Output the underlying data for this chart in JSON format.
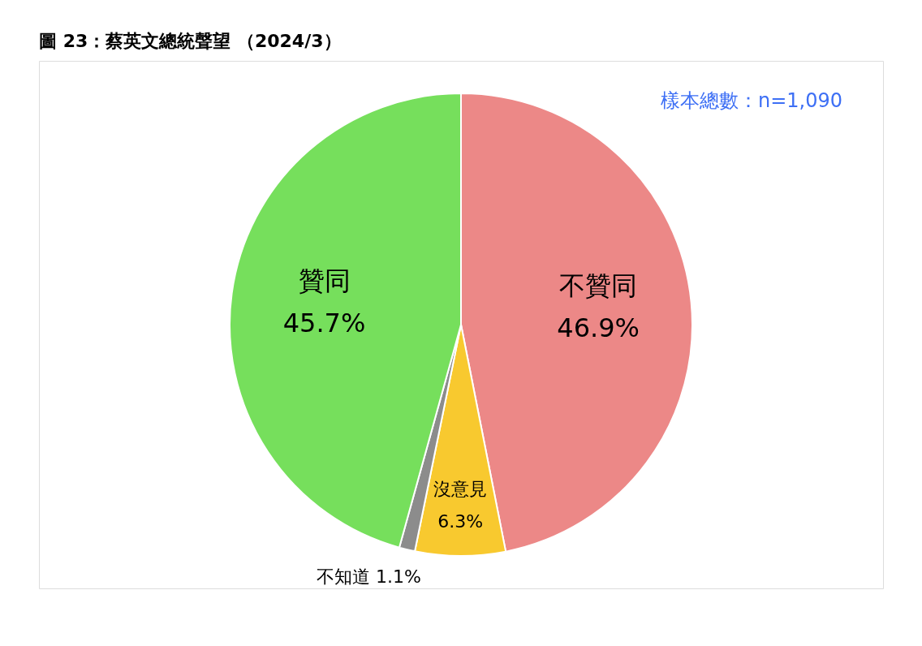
{
  "chart_data": {
    "type": "pie",
    "title": "圖 23：蔡英文總統聲望 （2024/3）",
    "categories": [
      "不贊同",
      "沒意見",
      "不知道",
      "贊同"
    ],
    "values": [
      46.9,
      6.3,
      1.1,
      45.7
    ],
    "value_labels": [
      "46.9%",
      "6.3%",
      "1.1%",
      "45.7%"
    ],
    "colors": [
      "#ec8887",
      "#f8c92f",
      "#8c8c8c",
      "#76df5c"
    ],
    "annotations": [
      "樣本總數：n=1,090"
    ],
    "legend": false
  }
}
